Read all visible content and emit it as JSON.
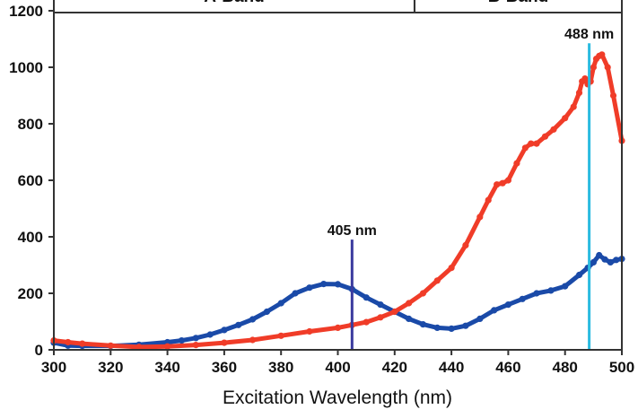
{
  "chart_data": {
    "type": "line",
    "xlabel": "Excitation Wavelength (nm)",
    "ylabel": "",
    "xlim": [
      300,
      500
    ],
    "ylim": [
      0,
      1200
    ],
    "xticks": [
      300,
      320,
      340,
      360,
      380,
      400,
      420,
      440,
      460,
      480,
      500
    ],
    "yticks": [
      0,
      200,
      400,
      600,
      800,
      1000,
      1200
    ],
    "grid": false,
    "bands": [
      {
        "label": "A-Band",
        "x_start": 300,
        "x_end": 427
      },
      {
        "label": "B-Band",
        "x_start": 427,
        "x_end": 500
      }
    ],
    "markers": [
      {
        "label": "405 nm",
        "x": 405,
        "y_top": 390,
        "color": "#3a3a9e"
      },
      {
        "label": "488 nm",
        "x": 488.5,
        "y_top": 1085,
        "color": "#2bbbe0"
      }
    ],
    "series": [
      {
        "color": "#1a4aa8",
        "x": [
          300,
          305,
          310,
          320,
          330,
          340,
          345,
          350,
          355,
          360,
          365,
          370,
          375,
          380,
          385,
          390,
          395,
          400,
          405,
          410,
          415,
          420,
          425,
          430,
          435,
          440,
          445,
          450,
          455,
          460,
          465,
          470,
          475,
          480,
          485,
          488,
          490,
          492,
          494,
          496,
          498,
          500
        ],
        "y": [
          25,
          15,
          14,
          14,
          18,
          27,
          33,
          42,
          54,
          70,
          88,
          108,
          135,
          165,
          200,
          220,
          233,
          232,
          215,
          185,
          160,
          135,
          110,
          90,
          78,
          75,
          85,
          110,
          140,
          160,
          180,
          200,
          210,
          225,
          265,
          290,
          310,
          335,
          320,
          310,
          318,
          322
        ]
      },
      {
        "color": "#f03c28",
        "x": [
          300,
          305,
          310,
          320,
          330,
          340,
          350,
          360,
          370,
          380,
          390,
          400,
          405,
          410,
          415,
          420,
          425,
          430,
          435,
          440,
          445,
          450,
          453,
          456,
          458,
          460,
          463,
          466,
          468,
          470,
          473,
          476,
          480,
          483,
          485,
          486,
          487,
          488,
          489,
          490,
          491,
          492,
          493,
          495,
          497,
          500
        ],
        "y": [
          33,
          27,
          22,
          15,
          10,
          12,
          17,
          25,
          35,
          50,
          65,
          78,
          88,
          98,
          115,
          135,
          165,
          200,
          245,
          290,
          370,
          470,
          530,
          585,
          590,
          600,
          660,
          715,
          730,
          730,
          755,
          780,
          820,
          860,
          910,
          950,
          960,
          940,
          950,
          1000,
          1030,
          1040,
          1045,
          1000,
          900,
          740
        ]
      }
    ]
  }
}
